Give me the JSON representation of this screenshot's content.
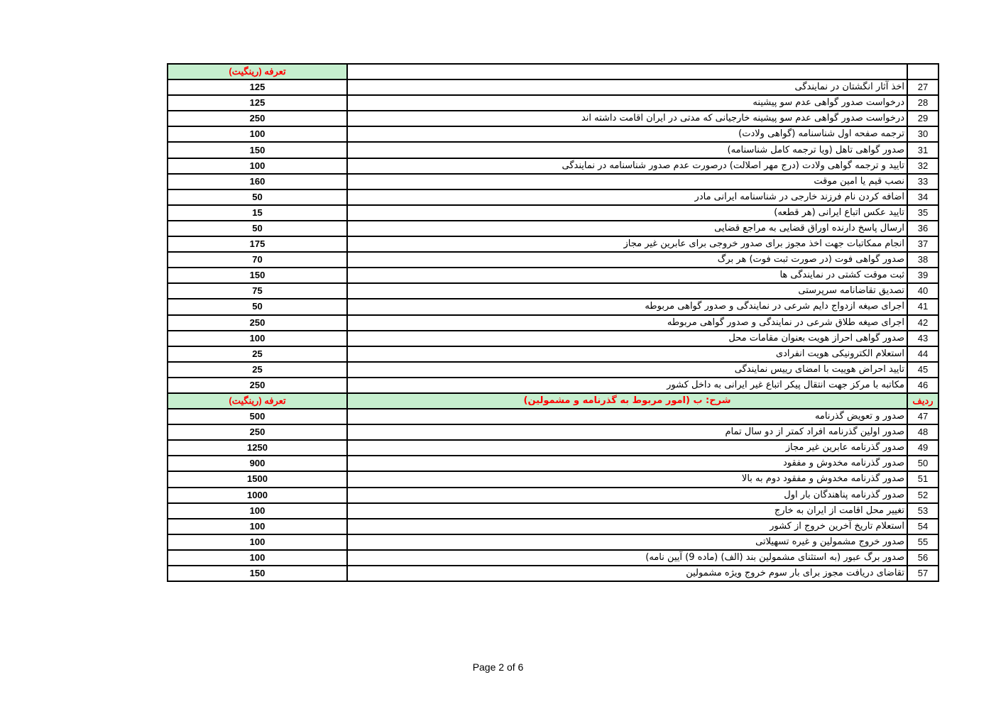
{
  "table": {
    "first_header": {
      "fee": "تعرفه (رینگیت)"
    },
    "rows_a": [
      {
        "no": "27",
        "desc": "اخذ آثار انگشتان در نمایندگی",
        "fee": "125"
      },
      {
        "no": "28",
        "desc": "درخواست صدور گواهی عدم سو پیشینه",
        "fee": "125"
      },
      {
        "no": "29",
        "desc": "درخواست صدور گواهی عدم سو پیشینه خارجیانی که مدتی در ایران اقامت داشته اند",
        "fee": "250"
      },
      {
        "no": "30",
        "desc": "ترجمه صفحه اول شناسنامه (گواهی ولادت)",
        "fee": "100"
      },
      {
        "no": "31",
        "desc": "صدور گواهی تاهل (ویا ترجمه کامل شناسنامه)",
        "fee": "150"
      },
      {
        "no": "32",
        "desc": "تایید و ترجمه گواهی ولادت (درج مهر اصلالت) درصورت عدم صدور شناسنامه در نمایندگی",
        "fee": "100"
      },
      {
        "no": "33",
        "desc": "نصب قیم یا امین موقت",
        "fee": "160"
      },
      {
        "no": "34",
        "desc": "اضافه کردن نام فرزند خارجی در شناسنامه ایرانی مادر",
        "fee": "50"
      },
      {
        "no": "35",
        "desc": "تایید عکس اتباع ایرانی (هر قطعه)",
        "fee": "15"
      },
      {
        "no": "36",
        "desc": "ارسال پاسخ دارنده اوراق قضایی به مراجع قضایی",
        "fee": "50"
      },
      {
        "no": "37",
        "desc": "انجام ممکاتبات جهت اخذ مجوز برای صدور خروجی برای عابرین غیر مجاز",
        "fee": "175"
      },
      {
        "no": "38",
        "desc": "صدور گواهی فوت (در صورت ثبت فوت) هر برگ",
        "fee": "70"
      },
      {
        "no": "39",
        "desc": "ثبت موقت کشتی در نمایندگی ها",
        "fee": "150"
      },
      {
        "no": "40",
        "desc": "تصدیق تقاضانامه سرپرستی",
        "fee": "75"
      },
      {
        "no": "41",
        "desc": "اجرای صیغه ازدواج دایم شرعی در نمایندگی و صدور گواهی مربوطه",
        "fee": "50"
      },
      {
        "no": "42",
        "desc": "اجرای صیغه طلاق شرعی در نمایندگی و صدور گواهی مربوطه",
        "fee": "250"
      },
      {
        "no": "43",
        "desc": "صدور گواهی احراز هویت بعنوان مقامات محل",
        "fee": "100"
      },
      {
        "no": "44",
        "desc": "استعلام الکترونیکی هویت انفرادی",
        "fee": "25"
      },
      {
        "no": "45",
        "desc": "تایید احراض هوییت با امضای رییس نمایندگی",
        "fee": "25"
      },
      {
        "no": "46",
        "desc": "مکاتبه با مرکز جهت انتقال پیکر اتباع غیر ایرانی به داخل کشور",
        "fee": "250"
      }
    ],
    "second_header": {
      "no": "ردیف",
      "desc": "شرح: ب (امور مربوط به گذرنامه و مشمولین)",
      "fee": "تعرفه (رینگیت)"
    },
    "rows_b": [
      {
        "no": "47",
        "desc": "صدور و تعویض گذرنامه",
        "fee": "500"
      },
      {
        "no": "48",
        "desc": "صدور اولین گذرنامه افراد کمتر از دو سال تمام",
        "fee": "250"
      },
      {
        "no": "49",
        "desc": "صدور گذرنامه عابرین غیر مجاز",
        "fee": "1250"
      },
      {
        "no": "50",
        "desc": "صدور گذرنامه مخدوش و مفقود",
        "fee": "900"
      },
      {
        "no": "51",
        "desc": "صدور گذرنامه مخدوش و مفقود دوم به بالا",
        "fee": "1500"
      },
      {
        "no": "52",
        "desc": "صدور گذرنامه پناهندگان بار اول",
        "fee": "1000"
      },
      {
        "no": "53",
        "desc": "تغییر محل اقامت از ایران به خارج",
        "fee": "100"
      },
      {
        "no": "54",
        "desc": "استعلام تاریخ آخرین خروج از کشور",
        "fee": "100"
      },
      {
        "no": "55",
        "desc": "صدور خروج مشمولین و غیره تسهیلاتی",
        "fee": "100"
      },
      {
        "no": "56",
        "desc": "صدور برگ عبور (به استثنای مشمولین بند (الف) (ماده 9) آیین نامه)",
        "fee": "100"
      },
      {
        "no": "57",
        "desc": "تقاضای دریافت مجوز برای بار سوم خروج ویژه مشمولین",
        "fee": "150"
      }
    ]
  },
  "colors": {
    "header_bg": "#c6efce",
    "header_text": "#ff0000"
  },
  "footer": {
    "page": "Page 2 of 6"
  }
}
